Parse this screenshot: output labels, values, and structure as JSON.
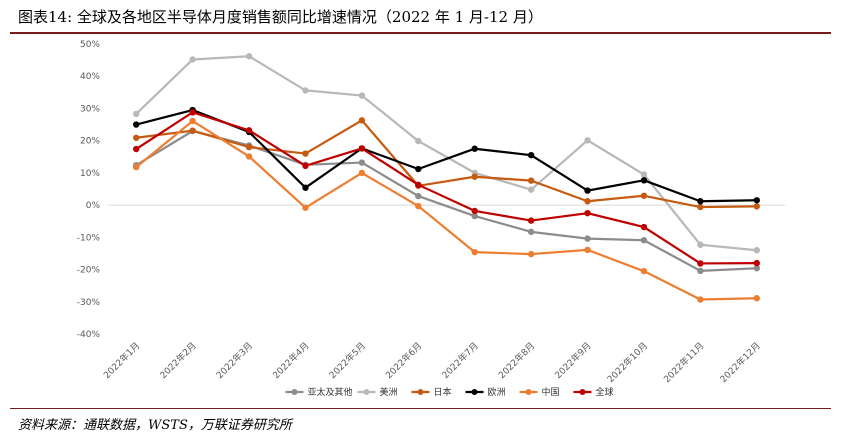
{
  "header": {
    "title": "图表14:  全球及各地区半导体月度销售额同比增速情况（2022 年 1 月-12 月）"
  },
  "footer": {
    "source": "资料来源：通联数据，WSTS，万联证券研究所"
  },
  "chart_data": {
    "type": "line",
    "title": "",
    "xlabel": "",
    "ylabel": "",
    "ylim": [
      -40,
      50
    ],
    "yticks": [
      -40,
      -30,
      -20,
      -10,
      0,
      10,
      20,
      30,
      40,
      50
    ],
    "ytick_labels": [
      "-40%",
      "-30%",
      "-20%",
      "-10%",
      "0%",
      "10%",
      "20%",
      "30%",
      "40%",
      "50%"
    ],
    "grid": false,
    "legend_position": "bottom",
    "categories": [
      "2022年1月",
      "2022年2月",
      "2022年3月",
      "2022年4月",
      "2022年5月",
      "2022年6月",
      "2022年7月",
      "2022年8月",
      "2022年9月",
      "2022年10月",
      "2022年11月",
      "2022年12月"
    ],
    "series": [
      {
        "name": "亚太及其他",
        "color": "#8c8c8c",
        "values": [
          12.4,
          23.0,
          18.5,
          12.5,
          13.2,
          2.8,
          -3.4,
          -8.3,
          -10.4,
          -10.9,
          -20.4,
          -19.6
        ]
      },
      {
        "name": "美洲",
        "color": "#b8b8b8",
        "values": [
          28.3,
          45.2,
          46.2,
          35.6,
          34.0,
          19.9,
          10.0,
          4.8,
          20.1,
          9.5,
          -12.3,
          -14.0
        ]
      },
      {
        "name": "日本",
        "color": "#c55a11",
        "values": [
          20.9,
          23.1,
          18.0,
          16.0,
          26.3,
          6.0,
          8.8,
          7.6,
          1.2,
          2.9,
          -0.6,
          -0.4
        ]
      },
      {
        "name": "欧洲",
        "color": "#000000",
        "values": [
          25.0,
          29.5,
          22.7,
          5.4,
          17.6,
          11.2,
          17.5,
          15.5,
          4.5,
          7.7,
          1.2,
          1.5
        ]
      },
      {
        "name": "中国",
        "color": "#ed7d31",
        "values": [
          11.8,
          26.1,
          15.1,
          -0.8,
          10.0,
          -0.3,
          -14.6,
          -15.2,
          -13.9,
          -20.5,
          -29.3,
          -28.9
        ]
      },
      {
        "name": "全球",
        "color": "#c00000",
        "values": [
          17.4,
          28.8,
          23.2,
          12.2,
          17.6,
          6.3,
          -1.8,
          -4.8,
          -2.5,
          -6.8,
          -18.1,
          -18.0
        ]
      }
    ]
  }
}
